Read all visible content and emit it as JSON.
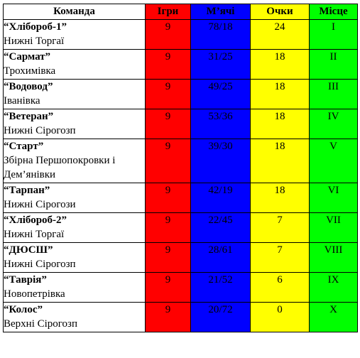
{
  "header": {
    "team": "Команда",
    "games": "Ігри",
    "goals": "М’ячі",
    "points": "Очки",
    "place": "Місце"
  },
  "colors": {
    "games": "#ff0000",
    "goals": "#0000ff",
    "points": "#ffff00",
    "place": "#00ff00"
  },
  "rows": [
    {
      "name": "“Хлібороб-1”",
      "town": "Нижні Торгаї",
      "games": "9",
      "goals": "78/18",
      "points": "24",
      "place": "I"
    },
    {
      "name": "“Сармат”",
      "town": "Трохимівка",
      "games": "9",
      "goals": "31/25",
      "points": "18",
      "place": "II"
    },
    {
      "name": "“Водовод”",
      "town": "Іванівка",
      "games": "9",
      "goals": "49/25",
      "points": "18",
      "place": "III"
    },
    {
      "name": "“Ветеран”",
      "town": "Нижні Сірогозп",
      "games": "9",
      "goals": "53/36",
      "points": "18",
      "place": "IV"
    },
    {
      "name": "“Старт”",
      "town": "Збірна Першопокровки і Дем’янівки",
      "games": "9",
      "goals": "39/30",
      "points": "18",
      "place": "V"
    },
    {
      "name": "“Тарпан”",
      "town": "Нижні Сірогози",
      "games": "9",
      "goals": "42/19",
      "points": "18",
      "place": "VI"
    },
    {
      "name": "“Хлібороб-2”",
      "town": "Нижні Торгаї",
      "games": "9",
      "goals": "22/45",
      "points": "7",
      "place": "VII"
    },
    {
      "name": "“ДЮСШ”",
      "town": "Нижні Сірогозп",
      "games": "9",
      "goals": "28/61",
      "points": "7",
      "place": "VIII"
    },
    {
      "name": "“Таврія”",
      "town": "Новопетрівка",
      "games": "9",
      "goals": "21/52",
      "points": "6",
      "place": "IX"
    },
    {
      "name": "“Колос”",
      "town": "Верхні Сірогозп",
      "games": "9",
      "goals": "20/72",
      "points": "0",
      "place": "X"
    }
  ]
}
